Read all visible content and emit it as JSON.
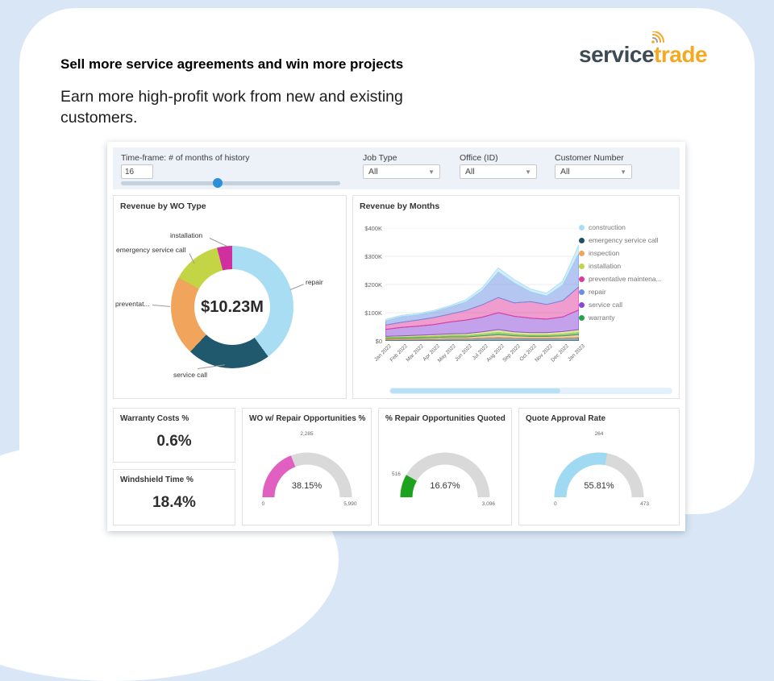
{
  "slide": {
    "headline": "Sell more service agreements and win more projects",
    "subheadline": "Earn more high-profit work from new and existing customers.",
    "logo_part1": "service",
    "logo_part2": "trade"
  },
  "filters": {
    "timeframe_label": "Time-frame: # of months of history",
    "timeframe_value": "16",
    "job_type_label": "Job Type",
    "job_type_value": "All",
    "office_label": "Office (ID)",
    "office_value": "All",
    "customer_label": "Customer Number",
    "customer_value": "All"
  },
  "panels": {
    "donut_title": "Revenue by WO Type",
    "months_title": "Revenue by Months"
  },
  "kpis": {
    "warranty": {
      "label": "Warranty Costs %",
      "value": "0.6%"
    },
    "windshield": {
      "label": "Windshield Time %",
      "value": "18.4%"
    },
    "wo_repair": {
      "label": "WO w/ Repair Opportunities %",
      "value": "38.15%",
      "raw": "2,285",
      "min": "0",
      "max": "5,990",
      "percent": 38.15,
      "color": "#e05fc0"
    },
    "repair_quoted": {
      "label": "% Repair Opportunities Quoted",
      "value": "16.67%",
      "raw": "516",
      "max": "3,096",
      "percent": 16.67,
      "color": "#1ca21c"
    },
    "quote_approval": {
      "label": "Quote Approval Rate",
      "value": "55.81%",
      "raw": "264",
      "min": "0",
      "max": "473",
      "percent": 55.81,
      "color": "#9fd9f2"
    }
  },
  "chart_data": [
    {
      "type": "pie",
      "title": "Revenue by WO Type",
      "center_total": "$10.23M",
      "segments": [
        {
          "label": "repair",
          "percent": 40,
          "color": "#a8ddf3"
        },
        {
          "label": "service call",
          "percent": 22,
          "color": "#20586e"
        },
        {
          "label": "preventat...",
          "percent": 21,
          "color": "#f0a45c"
        },
        {
          "label": "emergency service call",
          "percent": 13,
          "color": "#c3d545"
        },
        {
          "label": "installation",
          "percent": 4,
          "color": "#cf2f9f"
        }
      ]
    },
    {
      "type": "area",
      "title": "Revenue by Months",
      "stacked": true,
      "ymax": 400,
      "unit": "$K",
      "y_ticks": [
        "$400K",
        "$300K",
        "$200K",
        "$100K",
        "$0"
      ],
      "x": [
        "Jan 2022",
        "Feb 2022",
        "Mar 2022",
        "Apr 2022",
        "May 2022",
        "Jun 2022",
        "Jul 2022",
        "Aug 2022",
        "Sep 2022",
        "Oct 2022",
        "Nov 2022",
        "Dec 2022",
        "Jan 2023"
      ],
      "series": [
        {
          "name": "emergency service call",
          "color": "#1d4e66",
          "values": [
            5,
            6,
            6,
            7,
            8,
            8,
            10,
            12,
            10,
            9,
            9,
            10,
            12
          ]
        },
        {
          "name": "inspection",
          "color": "#f0a45c",
          "values": [
            4,
            4,
            5,
            5,
            6,
            6,
            8,
            10,
            8,
            7,
            7,
            8,
            10
          ]
        },
        {
          "name": "warranty",
          "color": "#2ca04c",
          "values": [
            3,
            3,
            4,
            4,
            5,
            5,
            6,
            8,
            6,
            5,
            5,
            6,
            8
          ]
        },
        {
          "name": "installation",
          "color": "#c3d545",
          "values": [
            4,
            5,
            5,
            6,
            6,
            7,
            8,
            10,
            8,
            8,
            8,
            9,
            10
          ]
        },
        {
          "name": "service call",
          "color": "#8a46d8",
          "values": [
            25,
            30,
            32,
            36,
            42,
            48,
            52,
            60,
            55,
            52,
            48,
            52,
            70
          ]
        },
        {
          "name": "preventative maintenance",
          "color": "#e0399e",
          "values": [
            15,
            18,
            22,
            25,
            28,
            34,
            44,
            54,
            48,
            58,
            52,
            58,
            82
          ]
        },
        {
          "name": "repair",
          "color": "#6b8fe3",
          "values": [
            15,
            20,
            18,
            20,
            25,
            30,
            50,
            90,
            70,
            35,
            30,
            55,
            120
          ]
        },
        {
          "name": "construction",
          "color": "#a8ddf3",
          "values": [
            5,
            5,
            5,
            5,
            5,
            8,
            10,
            15,
            12,
            10,
            10,
            15,
            28
          ]
        }
      ],
      "legend": [
        {
          "label": "construction",
          "color": "#a8ddf3"
        },
        {
          "label": "emergency service call",
          "color": "#1d4e66"
        },
        {
          "label": "inspection",
          "color": "#f0a45c"
        },
        {
          "label": "installation",
          "color": "#c3d545"
        },
        {
          "label": "preventative maintena...",
          "color": "#e0399e"
        },
        {
          "label": "repair",
          "color": "#6b8fe3"
        },
        {
          "label": "service call",
          "color": "#8a46d8"
        },
        {
          "label": "warranty",
          "color": "#2ca04c"
        }
      ]
    },
    {
      "type": "gauge",
      "gauges": [
        {
          "label": "WO w/ Repair Opportunities %",
          "value_pct": 38.15,
          "raw": 2285,
          "min": 0,
          "max": 5990
        },
        {
          "label": "% Repair Opportunities Quoted",
          "value_pct": 16.67,
          "raw": 516,
          "max": 3096
        },
        {
          "label": "Quote Approval Rate",
          "value_pct": 55.81,
          "raw": 264,
          "min": 0,
          "max": 473
        }
      ]
    }
  ]
}
